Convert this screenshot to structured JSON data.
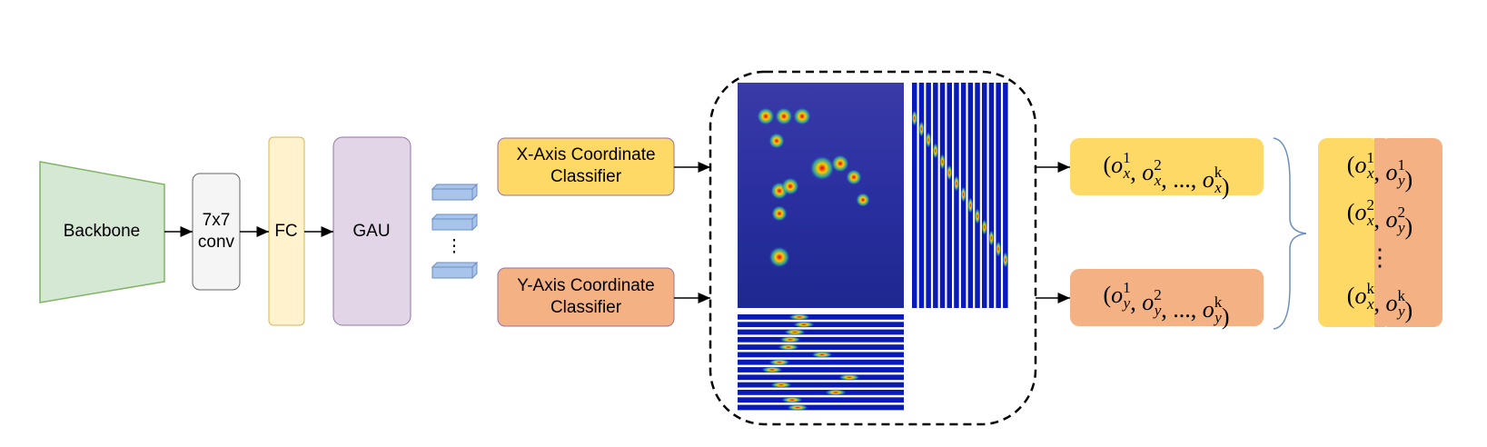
{
  "nodes": [
    {
      "label": [
        "Backbone"
      ]
    },
    {
      "label": [
        "7x7",
        "conv"
      ]
    },
    {
      "label": [
        "FC"
      ]
    },
    {
      "label": [
        "GAU"
      ]
    },
    {
      "label": [
        "⋮"
      ]
    },
    {
      "label": [
        "X-Axis Coordinate",
        "Classifier"
      ]
    },
    {
      "label": [
        "Y-Axis Coordinate",
        "Classifier"
      ]
    }
  ],
  "outputs": [
    {
      "tokens": [
        "(",
        {
          "b": "o",
          "sub": "x",
          "sup": "1"
        },
        ", ",
        {
          "b": "o",
          "sub": "x",
          "sup": "2"
        },
        ", ..., ",
        {
          "b": "o",
          "sub": "x",
          "sup": "k"
        },
        ")"
      ]
    },
    {
      "tokens": [
        "(",
        {
          "b": "o",
          "sub": "y",
          "sup": "1"
        },
        ", ",
        {
          "b": "o",
          "sub": "y",
          "sup": "2"
        },
        ", ..., ",
        {
          "b": "o",
          "sub": "y",
          "sup": "k"
        },
        ")"
      ]
    }
  ],
  "result": {
    "rows": [
      {
        "tokens": [
          "(",
          {
            "b": "o",
            "sub": "x",
            "sup": "1"
          },
          ", ",
          {
            "b": "o",
            "sub": "y",
            "sup": "1"
          },
          ")"
        ]
      },
      {
        "tokens": [
          "(",
          {
            "b": "o",
            "sub": "x",
            "sup": "2"
          },
          ", ",
          {
            "b": "o",
            "sub": "y",
            "sup": "2"
          },
          ")"
        ]
      },
      {
        "tokens": [
          "⋮"
        ]
      },
      {
        "tokens": [
          "(",
          {
            "b": "o",
            "sub": "x",
            "sup": "k"
          },
          ", ",
          {
            "b": "o",
            "sub": "y",
            "sup": "k"
          },
          ")"
        ]
      }
    ]
  }
}
